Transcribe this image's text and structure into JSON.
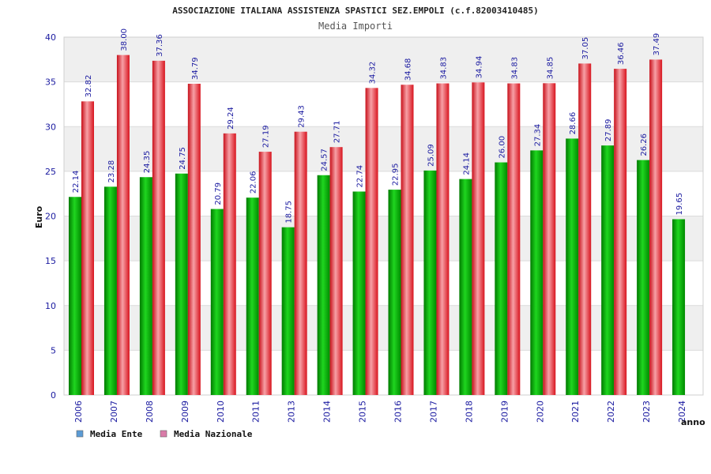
{
  "chart_data": {
    "type": "bar",
    "title": "ASSOCIAZIONE ITALIANA ASSISTENZA SPASTICI SEZ.EMPOLI (c.f.82003410485)",
    "subtitle": "Media Importi",
    "xlabel": "anno",
    "ylabel": "Euro",
    "ylim": [
      0,
      40
    ],
    "yticks": [
      0,
      5,
      10,
      15,
      20,
      25,
      30,
      35,
      40
    ],
    "grid": true,
    "legend_position": "bottom-left",
    "categories": [
      "2006",
      "2007",
      "2008",
      "2009",
      "2010",
      "2011",
      "2013",
      "2014",
      "2015",
      "2016",
      "2017",
      "2018",
      "2019",
      "2020",
      "2021",
      "2022",
      "2023",
      "2024"
    ],
    "series": [
      {
        "name": "Media Ente",
        "color": "#00b000",
        "legend_color": "#5b9bd5",
        "values": [
          22.14,
          23.28,
          24.35,
          24.75,
          20.79,
          22.06,
          18.75,
          24.57,
          22.74,
          22.95,
          25.09,
          24.14,
          26.0,
          27.34,
          28.66,
          27.89,
          26.26,
          19.65
        ],
        "labels": [
          "22.14",
          "23.28",
          "24.35",
          "24.75",
          "20.79",
          "22.06",
          "18.75",
          "24.57",
          "22.74",
          "22.95",
          "25.09",
          "24.14",
          "26.00",
          "27.34",
          "28.66",
          "27.89",
          "26.26",
          "19.65"
        ]
      },
      {
        "name": "Media Nazionale",
        "color": "#e8202a",
        "legend_color": "#d97ba8",
        "values": [
          32.82,
          38.0,
          37.36,
          34.79,
          29.24,
          27.19,
          29.43,
          27.71,
          34.32,
          34.68,
          34.83,
          34.94,
          34.83,
          34.85,
          37.05,
          36.46,
          37.49,
          null
        ],
        "labels": [
          "32.82",
          "38.00",
          "37.36",
          "34.79",
          "29.24",
          "27.19",
          "29.43",
          "27.71",
          "34.32",
          "34.68",
          "34.83",
          "34.94",
          "34.83",
          "34.85",
          "37.05",
          "36.46",
          "37.49",
          null
        ]
      }
    ]
  }
}
